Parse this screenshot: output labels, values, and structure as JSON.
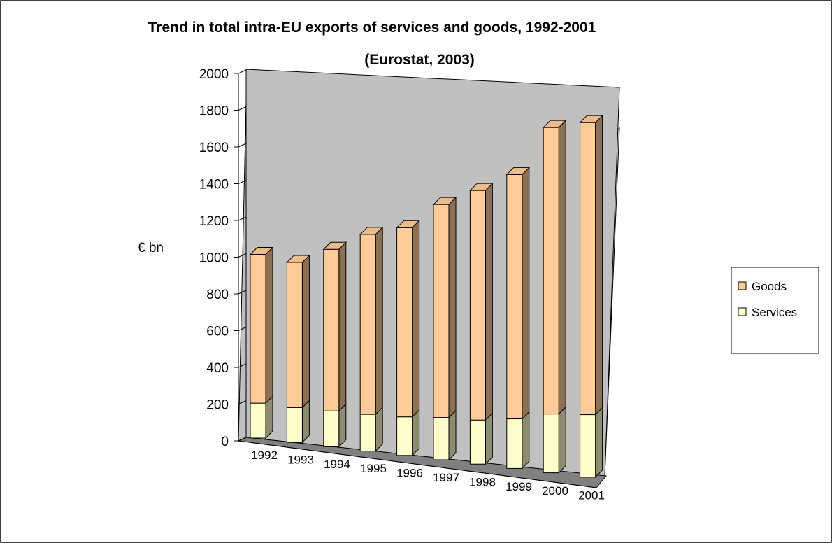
{
  "chart_data": {
    "type": "bar",
    "stacked": true,
    "three_d": true,
    "title": "Trend in total intra-EU exports of services and goods, 1992-2001",
    "subtitle": "(Eurostat, 2003)",
    "ylabel": "€ bn",
    "xlabel": "",
    "ylim": [
      0,
      2000
    ],
    "yticks": [
      0,
      200,
      400,
      600,
      800,
      1000,
      1200,
      1400,
      1600,
      1800,
      2000
    ],
    "categories": [
      "1992",
      "1993",
      "1994",
      "1995",
      "1996",
      "1997",
      "1998",
      "1999",
      "2000",
      "2001"
    ],
    "series": [
      {
        "name": "Services",
        "color": "#ffffcc",
        "values": [
          190,
          190,
          195,
          200,
          210,
          230,
          240,
          270,
          320,
          340
        ]
      },
      {
        "name": "Goods",
        "color": "#ffcc99",
        "values": [
          810,
          790,
          880,
          980,
          1030,
          1160,
          1250,
          1330,
          1560,
          1590
        ]
      }
    ],
    "legend": [
      "Goods",
      "Services"
    ],
    "legend_position": "right",
    "grid": false,
    "wall_color": "#c0c0c0",
    "floor_color": "#808080"
  }
}
